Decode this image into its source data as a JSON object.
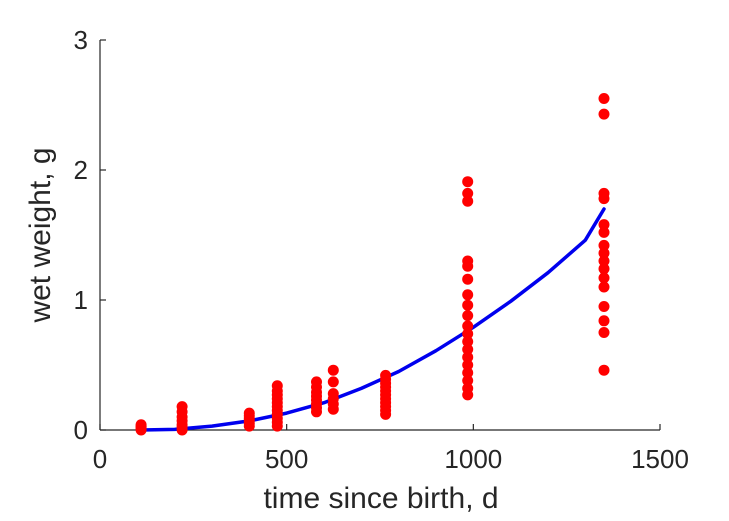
{
  "chart_data": {
    "type": "scatter",
    "xlabel": "time since birth, d",
    "ylabel": "wet weight, g",
    "xlim": [
      0,
      1500
    ],
    "ylim": [
      0,
      3
    ],
    "xticks": [
      "0",
      "500",
      "1000",
      "1500"
    ],
    "yticks": [
      "0",
      "1",
      "2",
      "3"
    ],
    "grid": false,
    "colors": {
      "points": "#ff0000",
      "fit": "#0000ee",
      "axis": "#262626"
    },
    "series": [
      {
        "kind": "points",
        "points": [
          [
            110,
            0.0
          ],
          [
            110,
            0.01
          ],
          [
            110,
            0.02
          ],
          [
            110,
            0.03
          ],
          [
            110,
            0.04
          ],
          [
            220,
            0.0
          ],
          [
            220,
            0.02
          ],
          [
            220,
            0.04
          ],
          [
            220,
            0.07
          ],
          [
            220,
            0.1
          ],
          [
            220,
            0.14
          ],
          [
            220,
            0.18
          ],
          [
            400,
            0.03
          ],
          [
            400,
            0.05
          ],
          [
            400,
            0.07
          ],
          [
            400,
            0.09
          ],
          [
            400,
            0.11
          ],
          [
            400,
            0.13
          ],
          [
            475,
            0.03
          ],
          [
            475,
            0.06
          ],
          [
            475,
            0.09
          ],
          [
            475,
            0.12
          ],
          [
            475,
            0.15
          ],
          [
            475,
            0.18
          ],
          [
            475,
            0.21
          ],
          [
            475,
            0.24
          ],
          [
            475,
            0.27
          ],
          [
            475,
            0.3
          ],
          [
            475,
            0.34
          ],
          [
            580,
            0.14
          ],
          [
            580,
            0.17
          ],
          [
            580,
            0.2
          ],
          [
            580,
            0.23
          ],
          [
            580,
            0.26
          ],
          [
            580,
            0.29
          ],
          [
            580,
            0.33
          ],
          [
            580,
            0.37
          ],
          [
            625,
            0.16
          ],
          [
            625,
            0.2
          ],
          [
            625,
            0.24
          ],
          [
            625,
            0.28
          ],
          [
            625,
            0.37
          ],
          [
            625,
            0.46
          ],
          [
            765,
            0.12
          ],
          [
            765,
            0.15
          ],
          [
            765,
            0.18
          ],
          [
            765,
            0.21
          ],
          [
            765,
            0.24
          ],
          [
            765,
            0.27
          ],
          [
            765,
            0.3
          ],
          [
            765,
            0.33
          ],
          [
            765,
            0.36
          ],
          [
            765,
            0.39
          ],
          [
            765,
            0.42
          ],
          [
            985,
            0.27
          ],
          [
            985,
            0.32
          ],
          [
            985,
            0.38
          ],
          [
            985,
            0.44
          ],
          [
            985,
            0.5
          ],
          [
            985,
            0.56
          ],
          [
            985,
            0.62
          ],
          [
            985,
            0.68
          ],
          [
            985,
            0.74
          ],
          [
            985,
            0.8
          ],
          [
            985,
            0.88
          ],
          [
            985,
            0.96
          ],
          [
            985,
            1.04
          ],
          [
            985,
            1.16
          ],
          [
            985,
            1.26
          ],
          [
            985,
            1.3
          ],
          [
            985,
            1.76
          ],
          [
            985,
            1.82
          ],
          [
            985,
            1.91
          ],
          [
            1350,
            0.46
          ],
          [
            1350,
            0.75
          ],
          [
            1350,
            0.84
          ],
          [
            1350,
            0.95
          ],
          [
            1350,
            1.1
          ],
          [
            1350,
            1.17
          ],
          [
            1350,
            1.24
          ],
          [
            1350,
            1.3
          ],
          [
            1350,
            1.36
          ],
          [
            1350,
            1.42
          ],
          [
            1350,
            1.52
          ],
          [
            1350,
            1.58
          ],
          [
            1350,
            1.78
          ],
          [
            1350,
            1.82
          ],
          [
            1350,
            2.43
          ],
          [
            1350,
            2.55
          ]
        ]
      },
      {
        "kind": "line",
        "points": [
          [
            110,
            0.0
          ],
          [
            200,
            0.005
          ],
          [
            300,
            0.03
          ],
          [
            400,
            0.07
          ],
          [
            500,
            0.13
          ],
          [
            600,
            0.21
          ],
          [
            700,
            0.32
          ],
          [
            800,
            0.45
          ],
          [
            900,
            0.61
          ],
          [
            1000,
            0.79
          ],
          [
            1100,
            0.99
          ],
          [
            1200,
            1.21
          ],
          [
            1300,
            1.46
          ],
          [
            1350,
            1.7
          ]
        ]
      }
    ]
  }
}
